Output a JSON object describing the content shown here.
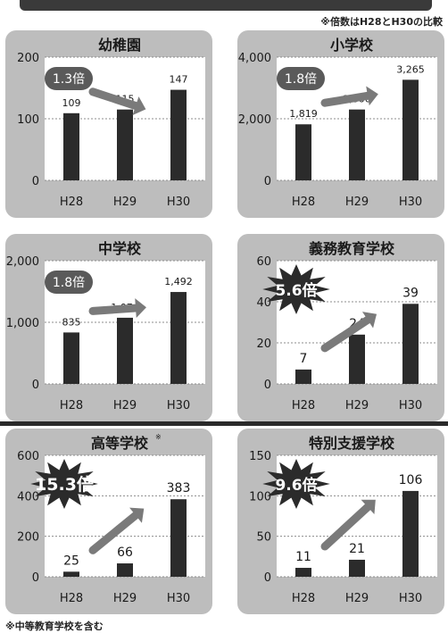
{
  "header_note": "※倍数はH28とH30の比較",
  "footer_note": "※中等教育学校を含む",
  "colors": {
    "bar": "#2b2b2b",
    "panel": "#bdbdbd",
    "plot": "#ffffff",
    "grid": "#8c8c8c"
  },
  "chart_data": [
    {
      "type": "bar",
      "title": "幼稚園",
      "categories": [
        "H28",
        "H29",
        "H30"
      ],
      "values": [
        109,
        115,
        147
      ],
      "value_labels": [
        "109",
        "115",
        "147"
      ],
      "ylim": [
        0,
        200
      ],
      "yticks": [
        "0",
        "100",
        "200"
      ],
      "ratio": "1.3倍",
      "badge_style": "oval"
    },
    {
      "type": "bar",
      "title": "小学校",
      "categories": [
        "H28",
        "H29",
        "H30"
      ],
      "values": [
        1819,
        2300,
        3265
      ],
      "value_labels": [
        "1,819",
        "2,300",
        "3,265"
      ],
      "ylim": [
        0,
        4000
      ],
      "yticks": [
        "0",
        "2,000",
        "4,000"
      ],
      "ratio": "1.8倍",
      "badge_style": "oval"
    },
    {
      "type": "bar",
      "title": "中学校",
      "categories": [
        "H28",
        "H29",
        "H30"
      ],
      "values": [
        835,
        1074,
        1492
      ],
      "value_labels": [
        "835",
        "1,074",
        "1,492"
      ],
      "ylim": [
        0,
        2000
      ],
      "yticks": [
        "0",
        "1,000",
        "2,000"
      ],
      "ratio": "1.8倍",
      "badge_style": "oval"
    },
    {
      "type": "bar",
      "title": "義務教育学校",
      "categories": [
        "H28",
        "H29",
        "H30"
      ],
      "values": [
        7,
        24,
        39
      ],
      "value_labels": [
        "7",
        "24",
        "39"
      ],
      "ylim": [
        0,
        60
      ],
      "yticks": [
        "0",
        "20",
        "40",
        "60"
      ],
      "ratio": "5.6倍",
      "badge_style": "star"
    },
    {
      "type": "bar",
      "title": "高等学校",
      "title_mark": "※",
      "categories": [
        "H28",
        "H29",
        "H30"
      ],
      "values": [
        25,
        66,
        383
      ],
      "value_labels": [
        "25",
        "66",
        "383"
      ],
      "ylim": [
        0,
        600
      ],
      "yticks": [
        "0",
        "200",
        "400",
        "600"
      ],
      "ratio": "15.3倍",
      "badge_style": "star"
    },
    {
      "type": "bar",
      "title": "特別支援学校",
      "categories": [
        "H28",
        "H29",
        "H30"
      ],
      "values": [
        11,
        21,
        106
      ],
      "value_labels": [
        "11",
        "21",
        "106"
      ],
      "ylim": [
        0,
        150
      ],
      "yticks": [
        "0",
        "50",
        "100",
        "150"
      ],
      "ratio": "9.6倍",
      "badge_style": "star"
    }
  ]
}
